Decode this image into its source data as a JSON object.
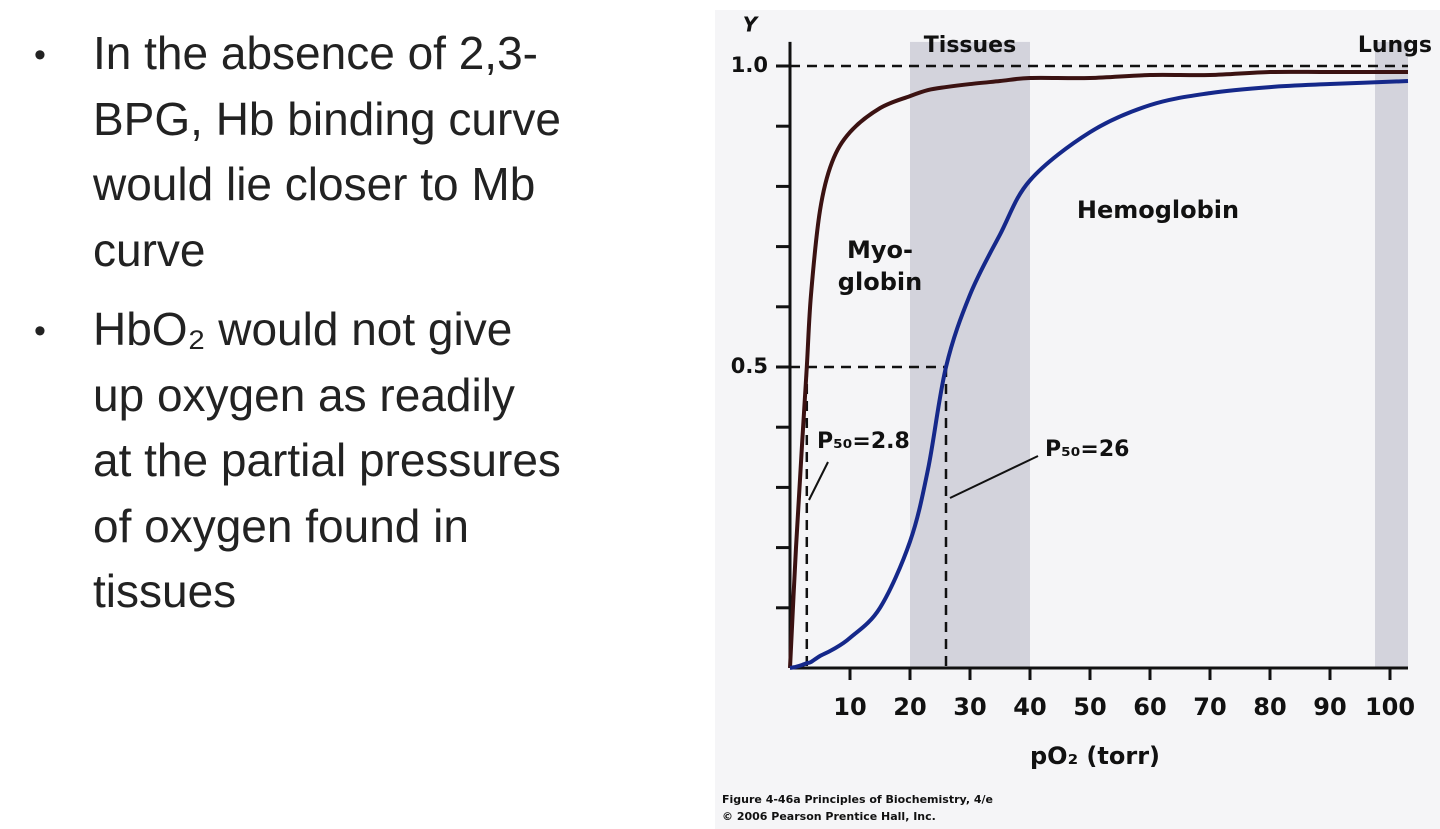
{
  "bullets": [
    [
      "In the absence of 2,3-",
      "BPG, Hb binding curve",
      "would lie closer to Mb",
      "curve"
    ],
    [
      "HbO₂ would not give",
      "up oxygen as readily",
      "at the partial pressures",
      "of oxygen found in",
      "tissues"
    ]
  ],
  "chart_data": {
    "type": "line",
    "y_label": "Y",
    "x_label": "pO₂ (torr)",
    "x": [
      0,
      1,
      2,
      2.8,
      3.5,
      5,
      7,
      10,
      15,
      20,
      23,
      26,
      30,
      35,
      40,
      50,
      60,
      70,
      80,
      90,
      103
    ],
    "series": [
      {
        "name": "Myo-globin",
        "label_lines": [
          "Myo-",
          "globin"
        ],
        "color": "#3b1212",
        "values": [
          0,
          0.2,
          0.37,
          0.5,
          0.62,
          0.76,
          0.84,
          0.89,
          0.93,
          0.95,
          0.96,
          0.965,
          0.97,
          0.975,
          0.98,
          0.98,
          0.985,
          0.985,
          0.99,
          0.99,
          0.99
        ]
      },
      {
        "name": "Hemoglobin",
        "color": "#15288a",
        "values": [
          0,
          0.002,
          0.005,
          0.008,
          0.01,
          0.02,
          0.03,
          0.05,
          0.1,
          0.21,
          0.33,
          0.5,
          0.62,
          0.72,
          0.81,
          0.89,
          0.935,
          0.955,
          0.965,
          0.97,
          0.975
        ]
      }
    ],
    "xlim": [
      0,
      103
    ],
    "ylim": [
      0,
      1.04
    ],
    "xticks": [
      10,
      20,
      30,
      40,
      50,
      60,
      70,
      80,
      90,
      100
    ],
    "yticks": [
      {
        "value": 0.5,
        "label": "0.5"
      },
      {
        "value": 1,
        "label": "1.0"
      }
    ],
    "yminor_ticks": [
      0.1,
      0.2,
      0.3,
      0.4,
      0.6,
      0.7,
      0.8,
      0.9
    ],
    "bands": [
      {
        "label": "Tissues",
        "range": [
          20,
          40
        ]
      },
      {
        "label": "Lungs",
        "range": [
          97.5,
          103
        ]
      }
    ],
    "band_color": "#d3d3dc",
    "reference_y": [
      1,
      0.5
    ],
    "p50": [
      {
        "x": 2.8,
        "label": "P₅₀=2.8"
      },
      {
        "x": 26,
        "label": "P₅₀=26"
      }
    ],
    "footer": [
      "Figure 4-46a  Principles of Biochemistry, 4/e",
      "© 2006 Pearson Prentice Hall, Inc."
    ]
  }
}
